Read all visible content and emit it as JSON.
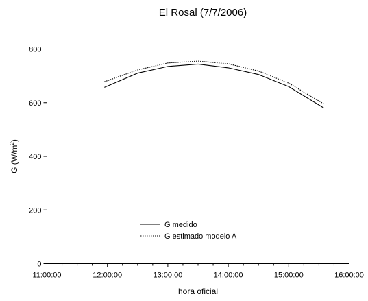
{
  "chart_data": {
    "type": "line",
    "title": "El Rosal (7/7/2006)",
    "xlabel": "hora oficial",
    "ylabel": "G (W/m",
    "ylabel_sup": "2",
    "ylabel_end": ")",
    "xlim": [
      "11:00:00",
      "16:00:00"
    ],
    "ylim": [
      0,
      800
    ],
    "x_ticks": [
      "11:00:00",
      "12:00:00",
      "13:00:00",
      "14:00:00",
      "15:00:00",
      "16:00:00"
    ],
    "y_ticks": [
      0,
      200,
      400,
      600,
      800
    ],
    "grid": false,
    "legend_position": "lower-left",
    "series": [
      {
        "name": "G medido",
        "line_style": "solid",
        "x": [
          "11:57:00",
          "12:30:00",
          "13:00:00",
          "13:30:00",
          "14:00:00",
          "14:30:00",
          "15:00:00",
          "15:35:00"
        ],
        "y": [
          657,
          710,
          735,
          744,
          730,
          705,
          660,
          580
        ]
      },
      {
        "name": "G estimado modelo A",
        "line_style": "dotted",
        "x": [
          "11:57:00",
          "12:30:00",
          "13:00:00",
          "13:30:00",
          "14:00:00",
          "14:30:00",
          "15:00:00",
          "15:35:00"
        ],
        "y": [
          678,
          722,
          748,
          755,
          745,
          718,
          673,
          595
        ]
      }
    ]
  }
}
